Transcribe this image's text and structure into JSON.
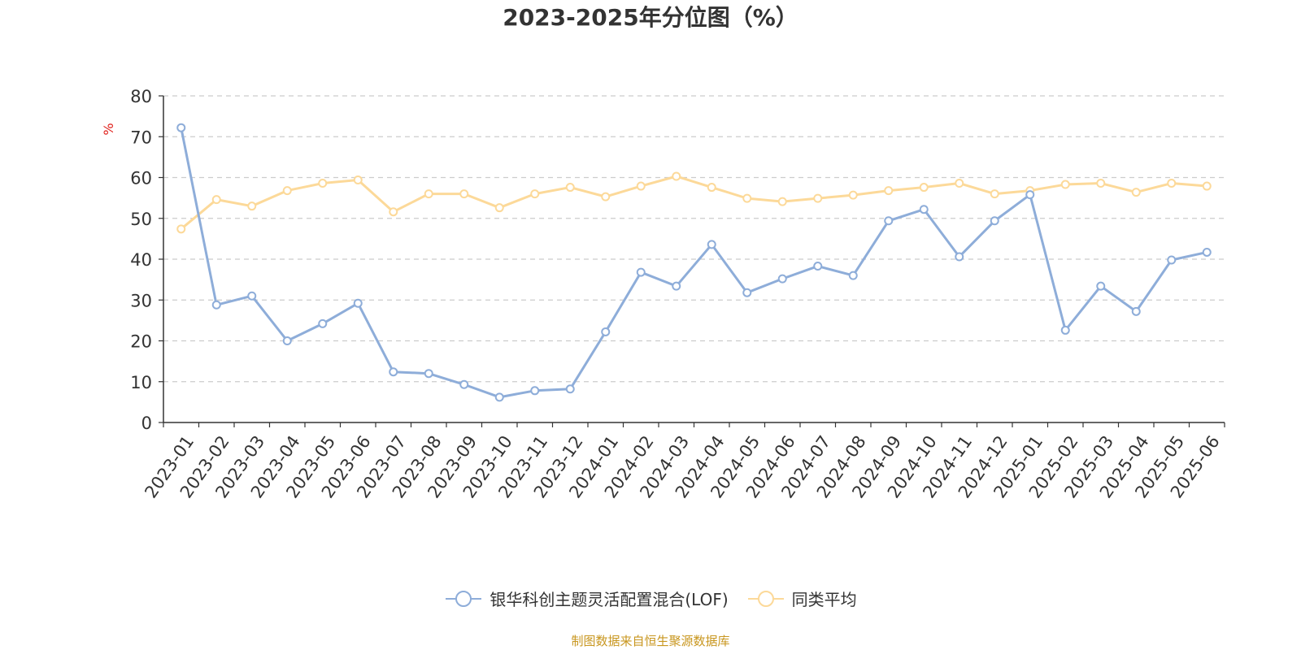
{
  "chart_data": {
    "type": "line",
    "title": "2023-2025年分位图（%）",
    "ylabel": "%",
    "ylim": [
      0,
      80
    ],
    "yticks": [
      0,
      10,
      20,
      30,
      40,
      50,
      60,
      70,
      80
    ],
    "grid": true,
    "legend_position": "bottom",
    "categories": [
      "2023-01",
      "2023-02",
      "2023-03",
      "2023-04",
      "2023-05",
      "2023-06",
      "2023-07",
      "2023-08",
      "2023-09",
      "2023-10",
      "2023-11",
      "2023-12",
      "2024-01",
      "2024-02",
      "2024-03",
      "2024-04",
      "2024-05",
      "2024-06",
      "2024-07",
      "2024-08",
      "2024-09",
      "2024-10",
      "2024-11",
      "2024-12",
      "2025-01",
      "2025-02",
      "2025-03",
      "2025-04",
      "2025-05",
      "2025-06"
    ],
    "series": [
      {
        "name": "银华科创主题灵活配置混合(LOF)",
        "color": "#8eadd9",
        "values": [
          72.2,
          28.8,
          31.0,
          20.0,
          24.2,
          29.2,
          12.4,
          12.0,
          9.3,
          6.2,
          7.8,
          8.2,
          22.2,
          36.8,
          33.4,
          43.6,
          31.8,
          35.2,
          38.3,
          36.0,
          49.4,
          52.2,
          40.6,
          49.4,
          55.8,
          22.6,
          33.4,
          27.2,
          39.8,
          41.7
        ]
      },
      {
        "name": "同类平均",
        "color": "#fcd999",
        "values": [
          47.4,
          54.6,
          53.0,
          56.8,
          58.6,
          59.4,
          51.6,
          56.0,
          56.0,
          52.6,
          56.0,
          57.6,
          55.3,
          57.9,
          60.3,
          57.6,
          54.9,
          54.1,
          54.9,
          55.7,
          56.8,
          57.6,
          58.6,
          56.0,
          56.8,
          58.3,
          58.6,
          56.4,
          58.6,
          57.9
        ]
      }
    ]
  },
  "source_note": "制图数据来自恒生聚源数据库"
}
